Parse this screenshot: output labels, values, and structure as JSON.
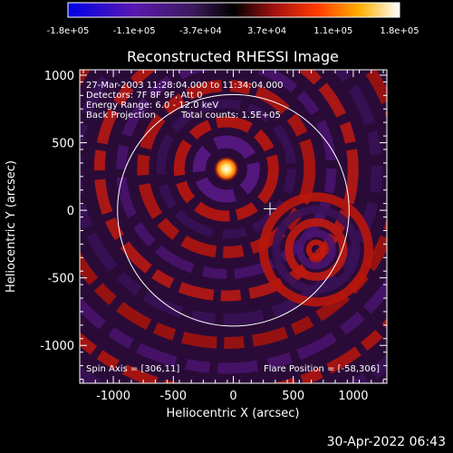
{
  "chart_data": {
    "type": "heatmap",
    "title": "Reconstructed RHESSI Image",
    "xlabel": "Heliocentric X (arcsec)",
    "ylabel": "Heliocentric Y (arcsec)",
    "xlim": [
      -1280,
      1280
    ],
    "ylim": [
      -1280,
      1040
    ],
    "xticks": [
      -1000,
      -500,
      0,
      500,
      1000
    ],
    "yticks": [
      -1000,
      -500,
      0,
      500,
      1000
    ],
    "colorbar": {
      "range": [
        -180000,
        180000
      ],
      "tick_labels": [
        "-1.8e+05",
        "-1.1e+05",
        "-3.7e+04",
        "3.7e+04",
        "1.1e+05",
        "1.8e+05"
      ],
      "colors": [
        "#0000e6",
        "#6e1aa6",
        "#3a1a5a",
        "#000000",
        "#b01010",
        "#ff3a00",
        "#ffb000",
        "#ffffff"
      ]
    },
    "annotations": {
      "line1": "27-Mar-2003 11:28:04.000 to 11:34:04.000",
      "line2": "Detectors: 7F 8F 9F, Att 0",
      "line3": "Energy Range: 6.0 - 12.0 keV",
      "line4a": "Back Projection",
      "line4b": "Total counts: 1.5E+05",
      "spin_axis": "Spin Axis = [306,11]",
      "flare_position": "Flare Position = [-58,306]"
    },
    "flare_source": {
      "x": -58,
      "y": 306
    },
    "spin_axis_marker": {
      "x": 306,
      "y": 11
    },
    "secondary_ring_center": {
      "x": 690,
      "y": -290
    },
    "solar_limb_radius": 965,
    "grid": false
  },
  "footer": {
    "timestamp": "30-Apr-2022 06:43"
  }
}
